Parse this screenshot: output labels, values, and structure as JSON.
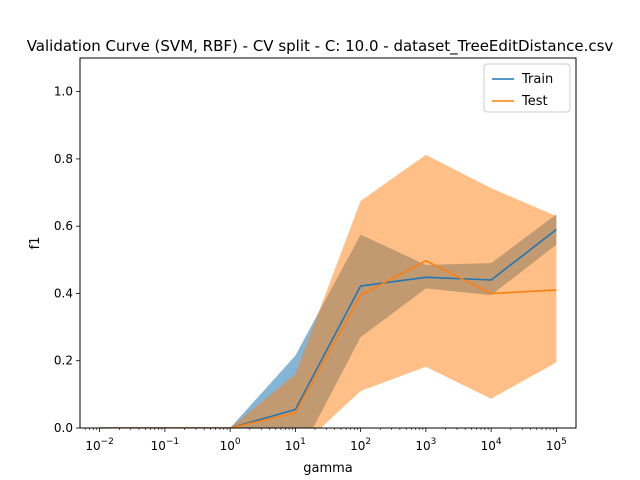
{
  "chart_data": {
    "type": "line",
    "title": "Validation Curve (SVM, RBF) - CV split - C: 10.0 - dataset_TreeEditDistance.csv",
    "xlabel": "gamma",
    "ylabel": "f1",
    "x_scale": "log",
    "xlim": [
      0.005,
      200000
    ],
    "ylim": [
      0,
      1.1
    ],
    "x": [
      0.01,
      0.1,
      1,
      10,
      100,
      1000,
      10000,
      100000
    ],
    "x_tick_values": [
      0.01,
      0.1,
      1,
      10,
      100,
      1000,
      10000,
      100000
    ],
    "x_tick_exponents": [
      "−2",
      "−1",
      "0",
      "1",
      "2",
      "3",
      "4",
      "5"
    ],
    "y_ticks": [
      "0.0",
      "0.2",
      "0.4",
      "0.6",
      "0.8",
      "1.0"
    ],
    "grid": false,
    "legend_position": "top-right",
    "series": [
      {
        "name": "Train",
        "color": "#1f77b4",
        "band_color": "#1f77b4",
        "values": [
          0.0,
          0.0,
          0.0,
          0.055,
          0.422,
          0.448,
          0.44,
          0.59
        ],
        "lower": [
          0.0,
          0.0,
          0.0,
          -0.1,
          0.27,
          0.415,
          0.395,
          0.545
        ],
        "upper": [
          0.0,
          0.0,
          0.0,
          0.215,
          0.575,
          0.485,
          0.49,
          0.635
        ]
      },
      {
        "name": "Test",
        "color": "#ff7f0e",
        "band_color": "#ff7f0e",
        "values": [
          0.0,
          0.0,
          0.0,
          0.045,
          0.395,
          0.497,
          0.4,
          0.41
        ],
        "lower": [
          0.0,
          0.0,
          0.0,
          -0.07,
          0.11,
          0.182,
          0.087,
          0.195
        ],
        "upper": [
          0.0,
          0.0,
          0.0,
          0.16,
          0.675,
          0.812,
          0.713,
          0.63
        ]
      }
    ]
  }
}
